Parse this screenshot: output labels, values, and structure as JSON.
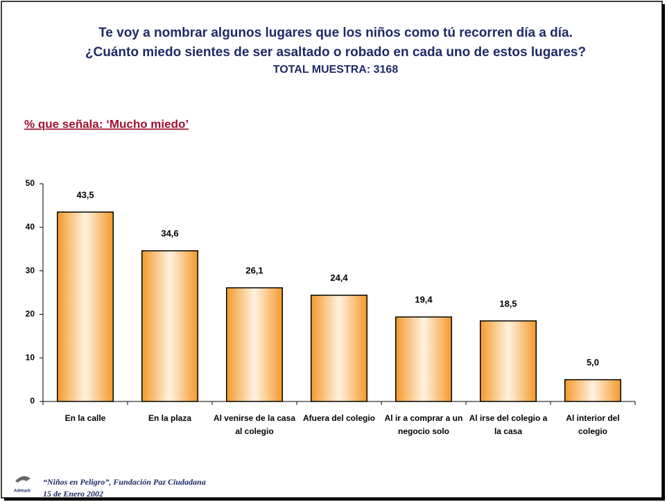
{
  "chart_data": {
    "type": "bar",
    "title": [
      "Te voy a nombrar algunos lugares que los niños como tú recorren día a día.",
      "¿Cuánto miedo sientes de ser asaltado o robado en cada uno de estos lugares?"
    ],
    "subtitle": "TOTAL MUESTRA: 3168",
    "measure": "% que señala: ‘Mucho miedo’",
    "categories": [
      "En la calle",
      "En la plaza",
      "Al venirse de la casa al colegio",
      "Afuera del colegio",
      "Al ir a comprar a un negocio solo",
      "Al irse del colegio a la casa",
      "Al interior del colegio"
    ],
    "values": [
      43.5,
      34.6,
      26.1,
      24.4,
      19.4,
      18.5,
      5.0
    ],
    "value_labels": [
      "43,5",
      "34,6",
      "26,1",
      "24,4",
      "19,4",
      "18,5",
      "5,0"
    ],
    "color": "#f39a2c",
    "ylim": [
      0,
      50
    ],
    "yticks": [
      0,
      10,
      20,
      30,
      40,
      50
    ],
    "grid": false
  },
  "footer": {
    "source": "“Niños en Peligro”, Fundación Paz Ciudadana",
    "date": "15 de Enero 2002",
    "logo": "Adimark"
  }
}
